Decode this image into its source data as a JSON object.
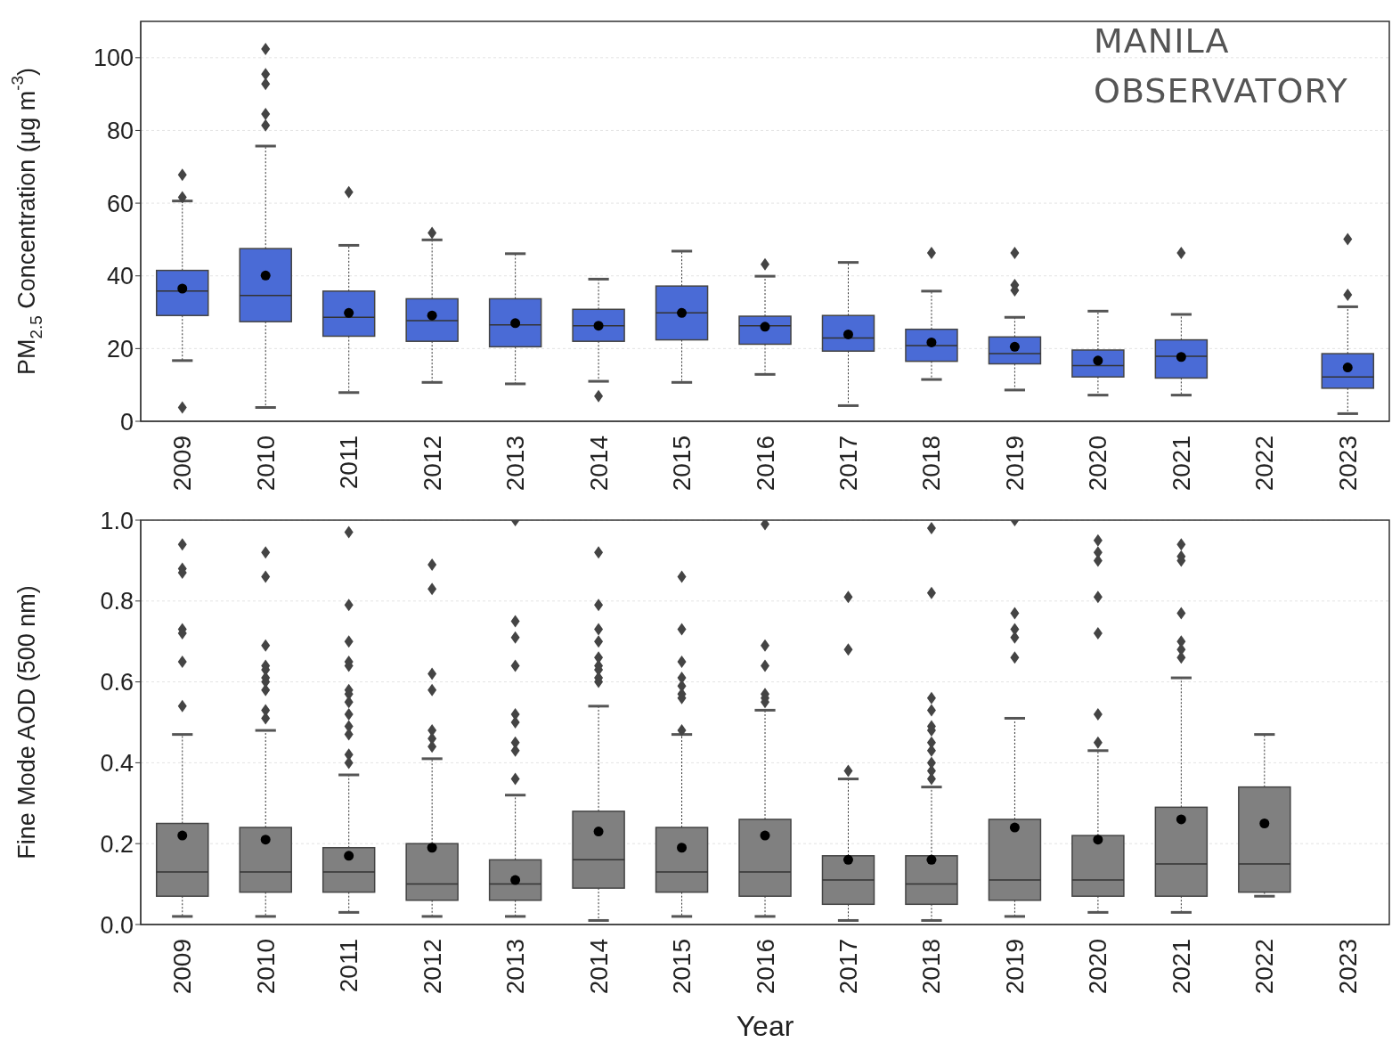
{
  "chart_data": [
    {
      "type": "box",
      "categories": [
        "2009",
        "2010",
        "2011",
        "2012",
        "2013",
        "2014",
        "2015",
        "2016",
        "2017",
        "2018",
        "2019",
        "2020",
        "2021",
        "2022",
        "2023"
      ],
      "ylabel": "PM$_{2.5}$ Concentration (μg m$^{-3}$)",
      "ylim": [
        0,
        110
      ],
      "yticks": [
        0,
        20,
        40,
        60,
        80,
        100
      ],
      "grid": "y",
      "color": "#4a6bd6",
      "marker": "diamond",
      "annotations": [
        "MANILA OBSERVATORY"
      ],
      "boxes": [
        {
          "low": 16.7,
          "q1": 29.1,
          "median": 35.8,
          "q3": 41.5,
          "high": 60.6,
          "mean": 36.5,
          "outliers": [
            67.8,
            61.6,
            3.8
          ]
        },
        {
          "low": 3.8,
          "q1": 27.4,
          "median": 34.6,
          "q3": 47.5,
          "high": 75.7,
          "mean": 40.1,
          "outliers": [
            102.4,
            95.5,
            92.8,
            84.5,
            81.4
          ]
        },
        {
          "low": 7.9,
          "q1": 23.4,
          "median": 28.6,
          "q3": 35.8,
          "high": 48.4,
          "mean": 29.8,
          "outliers": [
            63
          ]
        },
        {
          "low": 10.7,
          "q1": 22,
          "median": 27.7,
          "q3": 33.7,
          "high": 49.9,
          "mean": 29.1,
          "outliers": [
            51.8
          ]
        },
        {
          "low": 10.3,
          "q1": 20.5,
          "median": 26.5,
          "q3": 33.7,
          "high": 46.1,
          "mean": 27
        },
        {
          "low": 11,
          "q1": 22,
          "median": 26.3,
          "q3": 30.8,
          "high": 39.1,
          "mean": 26.3,
          "outliers": [
            6.9
          ]
        },
        {
          "low": 10.7,
          "q1": 22.4,
          "median": 29.8,
          "q3": 37.2,
          "high": 46.8,
          "mean": 29.8
        },
        {
          "low": 12.9,
          "q1": 21.2,
          "median": 26.3,
          "q3": 28.9,
          "high": 39.9,
          "mean": 26,
          "outliers": [
            43.2
          ]
        },
        {
          "low": 4.3,
          "q1": 19.3,
          "median": 22.9,
          "q3": 29.1,
          "high": 43.7,
          "mean": 23.9
        },
        {
          "low": 11.5,
          "q1": 16.5,
          "median": 20.8,
          "q3": 25.3,
          "high": 35.8,
          "mean": 21.7,
          "outliers": [
            46.3
          ]
        },
        {
          "low": 8.6,
          "q1": 15.8,
          "median": 18.6,
          "q3": 23.2,
          "high": 28.6,
          "mean": 20.5,
          "outliers": [
            46.3,
            37.5,
            36
          ]
        },
        {
          "low": 7.2,
          "q1": 12.2,
          "median": 15.3,
          "q3": 19.6,
          "high": 30.3,
          "mean": 16.7
        },
        {
          "low": 7.2,
          "q1": 11.9,
          "median": 17.9,
          "q3": 22.4,
          "high": 29.4,
          "mean": 17.7,
          "outliers": [
            46.3
          ]
        },
        null,
        {
          "low": 2.1,
          "q1": 9.1,
          "median": 12.2,
          "q3": 18.6,
          "high": 31.5,
          "mean": 14.8,
          "outliers": [
            50.1,
            34.8
          ]
        }
      ]
    },
    {
      "type": "box",
      "categories": [
        "2009",
        "2010",
        "2011",
        "2012",
        "2013",
        "2014",
        "2015",
        "2016",
        "2017",
        "2018",
        "2019",
        "2020",
        "2021",
        "2022",
        "2023"
      ],
      "xlabel": "Year",
      "ylabel": "Fine Mode AOD (500 nm)",
      "ylim": [
        0,
        1
      ],
      "yticks": [
        {
          "value": 0,
          "label": "0.0"
        },
        0.2,
        0.4,
        0.6,
        0.8,
        {
          "value": 1,
          "label": "1.0"
        }
      ],
      "grid": "y",
      "color": "#808080",
      "marker": "diamond",
      "boxes": [
        {
          "low": 0.02,
          "q1": 0.07,
          "median": 0.13,
          "q3": 0.25,
          "high": 0.47,
          "mean": 0.22,
          "outliers": [
            0.94,
            0.88,
            0.87,
            0.73,
            0.72,
            0.65,
            0.54
          ]
        },
        {
          "low": 0.02,
          "q1": 0.08,
          "median": 0.13,
          "q3": 0.24,
          "high": 0.48,
          "mean": 0.21,
          "outliers": [
            0.92,
            0.86,
            0.69,
            0.64,
            0.63,
            0.61,
            0.6,
            0.58,
            0.53,
            0.51
          ]
        },
        {
          "low": 0.03,
          "q1": 0.08,
          "median": 0.13,
          "q3": 0.19,
          "high": 0.37,
          "mean": 0.17,
          "outliers": [
            0.97,
            0.79,
            0.7,
            0.65,
            0.64,
            0.58,
            0.57,
            0.55,
            0.52,
            0.49,
            0.47,
            0.42,
            0.4
          ]
        },
        {
          "low": 0.02,
          "q1": 0.06,
          "median": 0.1,
          "q3": 0.2,
          "high": 0.41,
          "mean": 0.19,
          "outliers": [
            0.89,
            0.83,
            0.62,
            0.58,
            0.48,
            0.46,
            0.44
          ]
        },
        {
          "low": 0.02,
          "q1": 0.06,
          "median": 0.1,
          "q3": 0.16,
          "high": 0.32,
          "mean": 0.11,
          "outliers": [
            1,
            0.75,
            0.71,
            0.64,
            0.52,
            0.5,
            0.45,
            0.43,
            0.36
          ]
        },
        {
          "low": 0.01,
          "q1": 0.09,
          "median": 0.16,
          "q3": 0.28,
          "high": 0.54,
          "mean": 0.23,
          "outliers": [
            0.92,
            0.79,
            0.73,
            0.7,
            0.66,
            0.64,
            0.63,
            0.61,
            0.6
          ]
        },
        {
          "low": 0.02,
          "q1": 0.08,
          "median": 0.13,
          "q3": 0.24,
          "high": 0.47,
          "mean": 0.19,
          "outliers": [
            0.86,
            0.73,
            0.65,
            0.61,
            0.59,
            0.57,
            0.56,
            0.48
          ]
        },
        {
          "low": 0.02,
          "q1": 0.07,
          "median": 0.13,
          "q3": 0.26,
          "high": 0.53,
          "mean": 0.22,
          "outliers": [
            0.99,
            0.69,
            0.64,
            0.57,
            0.56,
            0.55
          ]
        },
        {
          "low": 0.01,
          "q1": 0.05,
          "median": 0.11,
          "q3": 0.17,
          "high": 0.36,
          "mean": 0.16,
          "outliers": [
            0.81,
            0.68,
            0.38
          ]
        },
        {
          "low": 0.01,
          "q1": 0.05,
          "median": 0.1,
          "q3": 0.17,
          "high": 0.34,
          "mean": 0.16,
          "outliers": [
            0.98,
            0.82,
            0.56,
            0.53,
            0.49,
            0.48,
            0.45,
            0.43,
            0.4,
            0.38,
            0.36
          ]
        },
        {
          "low": 0.02,
          "q1": 0.06,
          "median": 0.11,
          "q3": 0.26,
          "high": 0.51,
          "mean": 0.24,
          "outliers": [
            1,
            0.77,
            0.73,
            0.71,
            0.66
          ]
        },
        {
          "low": 0.03,
          "q1": 0.07,
          "median": 0.11,
          "q3": 0.22,
          "high": 0.43,
          "mean": 0.21,
          "outliers": [
            0.95,
            0.92,
            0.9,
            0.81,
            0.72,
            0.52,
            0.45
          ]
        },
        {
          "low": 0.03,
          "q1": 0.07,
          "median": 0.15,
          "q3": 0.29,
          "high": 0.61,
          "mean": 0.26,
          "outliers": [
            0.94,
            0.91,
            0.9,
            0.77,
            0.7,
            0.68,
            0.66
          ]
        },
        {
          "low": 0.07,
          "q1": 0.08,
          "median": 0.15,
          "q3": 0.34,
          "high": 0.47,
          "mean": 0.25
        },
        null
      ]
    }
  ]
}
